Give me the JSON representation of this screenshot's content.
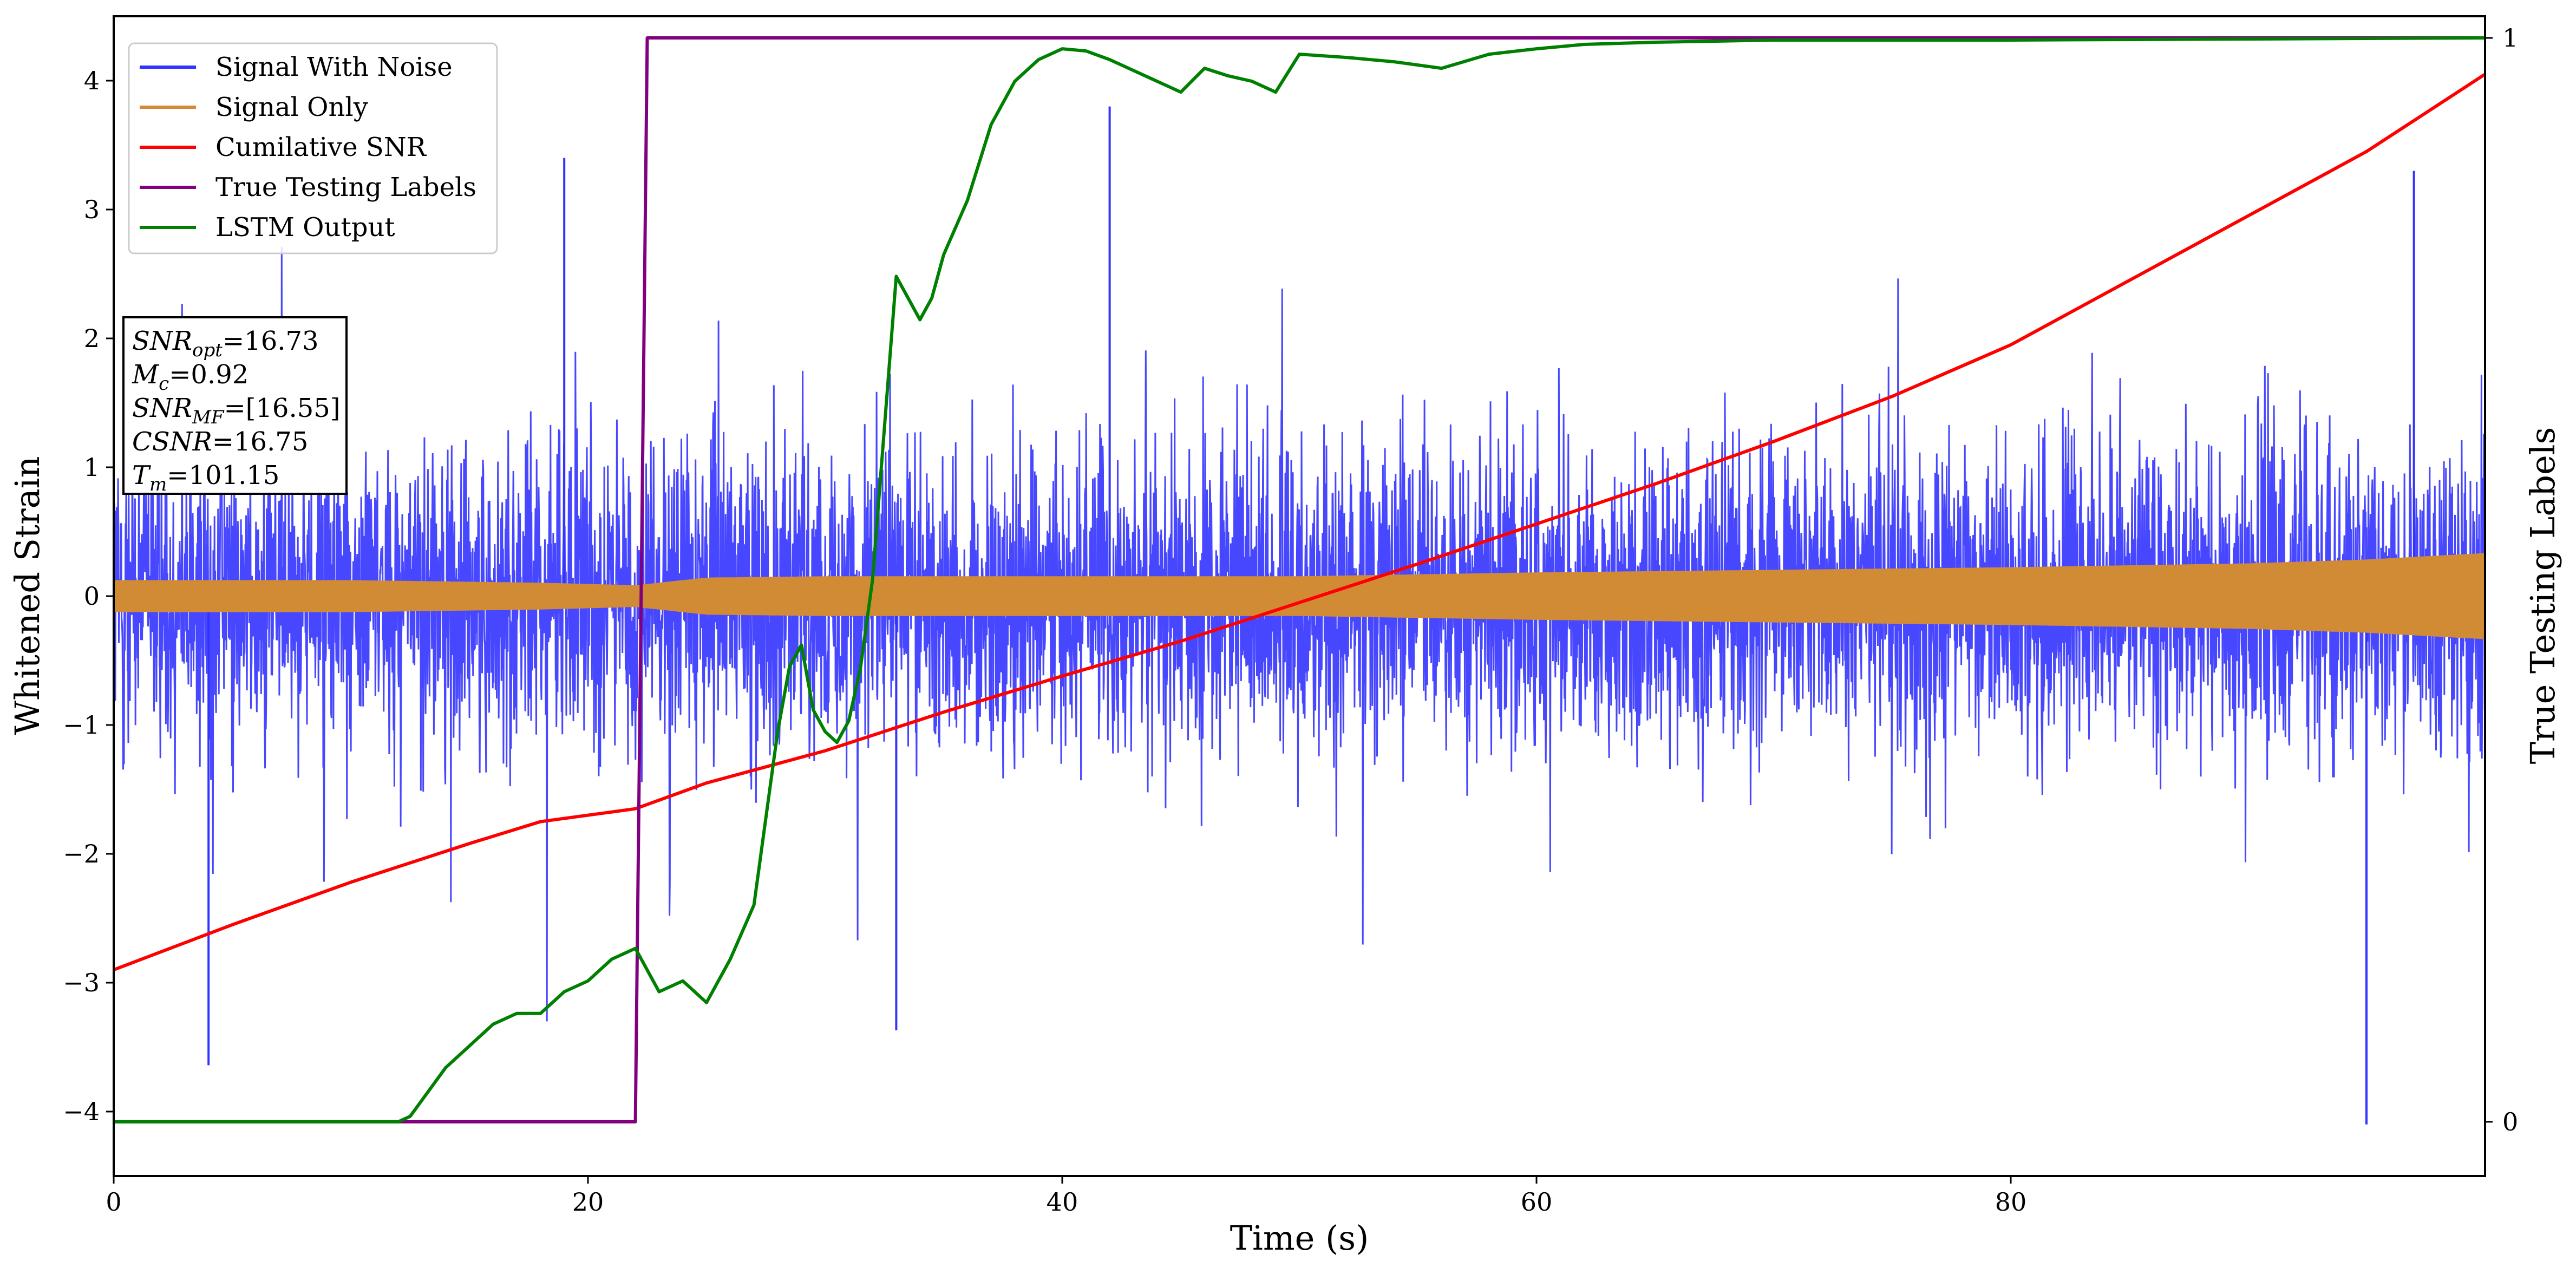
{
  "chart_data": {
    "type": "line",
    "xlabel": "Time (s)",
    "ylabel": "Whitened Strain",
    "y2label": "True Testing Labels",
    "xlim": [
      0,
      100
    ],
    "ylim": [
      -4.5,
      4.5
    ],
    "y2lim": [
      -0.05,
      1.02
    ],
    "x_ticks": [
      0,
      20,
      40,
      60,
      80
    ],
    "y_ticks": [
      -4,
      -3,
      -2,
      -1,
      0,
      1,
      2,
      3,
      4
    ],
    "y2_ticks": [
      0,
      1
    ],
    "legend_position": "top-left",
    "annotation_box": {
      "lines": [
        {
          "main": "SNR",
          "sub": "opt",
          "value": "=16.73"
        },
        {
          "main": "M",
          "sub": "c",
          "value": "=0.92"
        },
        {
          "main": "SNR",
          "sub": "MF",
          "value": "=[16.55]"
        },
        {
          "main": "CSNR",
          "sub": "",
          "value": "=16.75"
        },
        {
          "main": "T",
          "sub": "m",
          "value": "=101.15"
        }
      ]
    },
    "series": [
      {
        "name": "Signal With Noise",
        "color": "#3333ff",
        "axis": "left",
        "style": "noise",
        "envelope_x": [
          0,
          20,
          40,
          60,
          80,
          100
        ],
        "typical_amplitude": [
          1.1,
          1.1,
          1.1,
          1.1,
          1.1,
          1.1
        ],
        "spike_extremes": [
          3.4,
          -3.64,
          3.8,
          -3.37,
          3.3,
          -4.1
        ]
      },
      {
        "name": "Signal Only",
        "color": "#d18b35",
        "axis": "left",
        "style": "envelope",
        "envelope_x": [
          0,
          10,
          18,
          22,
          25,
          30,
          40,
          50,
          60,
          70,
          80,
          90,
          95,
          100
        ],
        "envelope_amp": [
          0.12,
          0.12,
          0.1,
          0.08,
          0.14,
          0.15,
          0.15,
          0.15,
          0.18,
          0.2,
          0.22,
          0.25,
          0.28,
          0.33
        ]
      },
      {
        "name": "Cumilative SNR",
        "color": "#ff0000",
        "axis": "left",
        "x": [
          0,
          5,
          10,
          15,
          18,
          22,
          25,
          30,
          35,
          40,
          45,
          50,
          55,
          60,
          65,
          70,
          75,
          80,
          85,
          90,
          95,
          100
        ],
        "y": [
          -2.9,
          -2.55,
          -2.22,
          -1.92,
          -1.75,
          -1.65,
          -1.45,
          -1.2,
          -0.9,
          -0.62,
          -0.35,
          -0.05,
          0.25,
          0.56,
          0.87,
          1.2,
          1.55,
          1.95,
          2.45,
          2.95,
          3.45,
          4.05
        ]
      },
      {
        "name": "True Testing Labels",
        "color": "#800080",
        "axis": "right",
        "x": [
          0,
          22,
          22.5,
          100
        ],
        "y": [
          0,
          0,
          1,
          1
        ]
      },
      {
        "name": "LSTM Output",
        "color": "#008000",
        "axis": "right",
        "x": [
          0,
          12,
          12.5,
          13,
          14,
          15,
          16,
          17,
          18,
          19,
          20,
          21,
          22,
          23,
          24,
          25,
          26,
          27,
          28,
          28.5,
          29,
          29.5,
          30,
          30.5,
          31,
          31.5,
          32,
          33,
          33.5,
          34,
          34.5,
          35,
          36,
          37,
          38,
          39,
          40,
          41,
          42,
          43,
          44,
          45,
          46,
          47,
          48,
          49,
          50,
          52,
          54,
          56,
          58,
          60,
          62,
          65,
          70,
          80,
          90,
          100
        ],
        "y": [
          0,
          0,
          0.005,
          0.02,
          0.05,
          0.07,
          0.09,
          0.1,
          0.1,
          0.12,
          0.13,
          0.15,
          0.16,
          0.12,
          0.13,
          0.11,
          0.15,
          0.2,
          0.36,
          0.42,
          0.44,
          0.38,
          0.36,
          0.35,
          0.37,
          0.42,
          0.5,
          0.78,
          0.76,
          0.74,
          0.76,
          0.8,
          0.85,
          0.92,
          0.96,
          0.98,
          0.99,
          0.988,
          0.98,
          0.97,
          0.96,
          0.95,
          0.972,
          0.965,
          0.96,
          0.95,
          0.985,
          0.982,
          0.978,
          0.972,
          0.985,
          0.99,
          0.994,
          0.996,
          0.998,
          0.998,
          0.999,
          1.0
        ]
      }
    ]
  }
}
